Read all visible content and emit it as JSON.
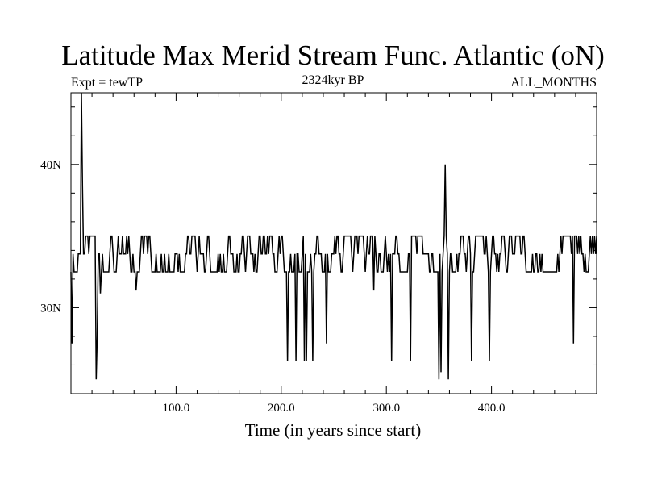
{
  "chart_data": {
    "type": "line",
    "title": "Latitude Max Merid Stream Func. Atlantic (oN)",
    "subtitle_left": "Expt = tewTP",
    "subtitle_center": "2324kyr BP",
    "subtitle_right": "ALL_MONTHS",
    "xlabel": "Time (in years since start)",
    "ylabel": "",
    "xlim": [
      0,
      500
    ],
    "ylim": [
      24,
      45
    ],
    "x_ticks": [
      {
        "value": 100,
        "label": "100.0"
      },
      {
        "value": 200,
        "label": "200.0"
      },
      {
        "value": 300,
        "label": "300.0"
      },
      {
        "value": 400,
        "label": "400.0"
      }
    ],
    "y_ticks": [
      {
        "value": 30,
        "label": "30N"
      },
      {
        "value": 40,
        "label": "40N"
      }
    ],
    "baseline_levels": [
      32.5,
      33.75,
      35.0
    ],
    "spikes": [
      {
        "x": 1,
        "y": 27.5
      },
      {
        "x": 10,
        "y": 45.0
      },
      {
        "x": 11,
        "y": 38.5
      },
      {
        "x": 24,
        "y": 25.0
      },
      {
        "x": 25,
        "y": 28.0
      },
      {
        "x": 28,
        "y": 31.0
      },
      {
        "x": 62,
        "y": 31.2
      },
      {
        "x": 206,
        "y": 26.3
      },
      {
        "x": 214,
        "y": 26.3
      },
      {
        "x": 222,
        "y": 26.3
      },
      {
        "x": 224,
        "y": 26.3
      },
      {
        "x": 230,
        "y": 26.3
      },
      {
        "x": 243,
        "y": 27.5
      },
      {
        "x": 288,
        "y": 31.2
      },
      {
        "x": 305,
        "y": 26.3
      },
      {
        "x": 323,
        "y": 26.3
      },
      {
        "x": 350,
        "y": 25.0
      },
      {
        "x": 352,
        "y": 25.5
      },
      {
        "x": 356,
        "y": 40.0
      },
      {
        "x": 359,
        "y": 25.0
      },
      {
        "x": 381,
        "y": 26.3
      },
      {
        "x": 398,
        "y": 26.3
      },
      {
        "x": 478,
        "y": 27.5
      }
    ],
    "colors": {
      "line": "#000000",
      "background": "#ffffff"
    }
  }
}
